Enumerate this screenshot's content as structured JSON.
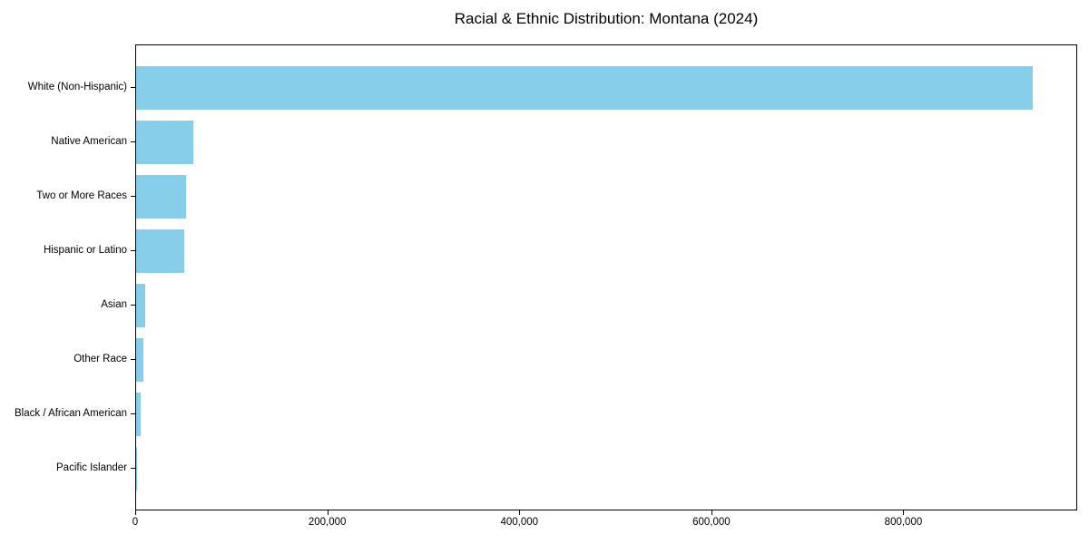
{
  "chart_data": {
    "type": "bar",
    "orientation": "horizontal",
    "title": "Racial & Ethnic Distribution: Montana (2024)",
    "categories": [
      "White (Non-Hispanic)",
      "Native American",
      "Two or More Races",
      "Hispanic or Latino",
      "Asian",
      "Other Race",
      "Black / African American",
      "Pacific Islander"
    ],
    "values": [
      934000,
      60000,
      52000,
      50000,
      9000,
      7500,
      5000,
      1000
    ],
    "xlabel": "",
    "ylabel": "",
    "xlim": [
      0,
      981000
    ],
    "xticks": [
      0,
      200000,
      400000,
      600000,
      800000
    ],
    "xtick_labels": [
      "0",
      "200,000",
      "400,000",
      "600,000",
      "800,000"
    ],
    "bar_color": "#87CEEB",
    "grid": false,
    "legend": null,
    "background_color": "#ffffff",
    "text_color": "#000000"
  }
}
